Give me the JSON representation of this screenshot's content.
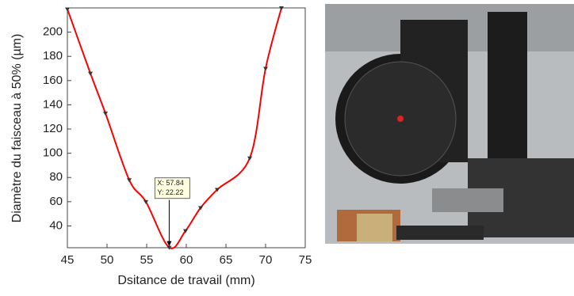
{
  "chart_data": {
    "type": "line",
    "xlabel": "Dsitance de travail (mm)",
    "ylabel": "Diamètre du faisceau à 50% (µm)",
    "series": [
      {
        "color": "#ff0000",
        "x": [
          45,
          47.9,
          49.8,
          52.8,
          54.9,
          57.84,
          59.9,
          61.8,
          63.9,
          68,
          70,
          72
        ],
        "values": [
          219,
          166,
          133,
          78,
          60,
          22.22,
          36,
          55,
          70,
          96,
          170,
          220
        ]
      }
    ],
    "xlim": [
      45,
      75
    ],
    "xticks": [
      45,
      50,
      55,
      60,
      65,
      70,
      75
    ],
    "ylim": [
      22,
      220
    ],
    "yticks": [
      40,
      60,
      80,
      100,
      120,
      140,
      160,
      180,
      200
    ],
    "annotation": [
      "X: 57.84",
      "Y: 22.22"
    ]
  }
}
